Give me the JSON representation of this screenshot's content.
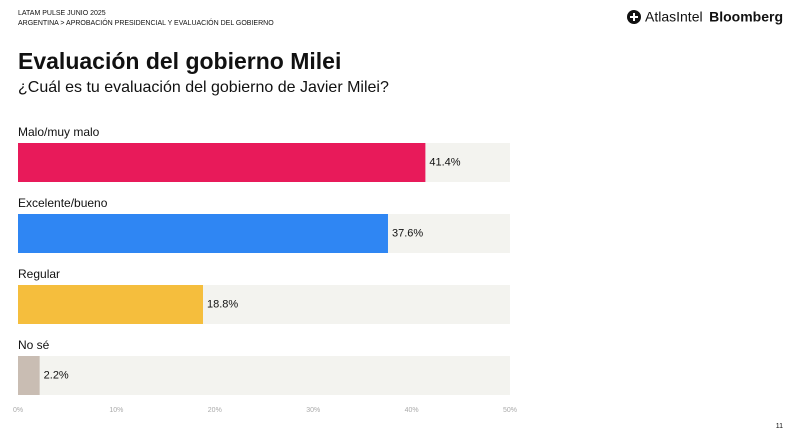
{
  "header": {
    "line1": "LATAM PULSE JUNIO 2025",
    "line2": "ARGENTINA > APROBACIÓN PRESIDENCIAL Y EVALUACIÓN DEL GOBIERNO",
    "brand1": "AtlasIntel",
    "brand2": "Bloomberg"
  },
  "page_number": "11",
  "chart_data": {
    "type": "hbar",
    "title": "Evaluación del gobierno Milei",
    "subtitle": "¿Cuál es tu evaluación del gobierno de Javier Milei?",
    "categories": [
      "Malo/muy malo",
      "Excelente/bueno",
      "Regular",
      "No sé"
    ],
    "values": [
      41.4,
      37.6,
      18.8,
      2.2
    ],
    "value_labels": [
      "41.4%",
      "37.6%",
      "18.8%",
      "2.2%"
    ],
    "colors": [
      "#e81a5a",
      "#2f86f3",
      "#f5be3d",
      "#c9bdb3"
    ],
    "xlim": [
      0,
      50
    ],
    "xticks": [
      {
        "value": 0,
        "label": "0%"
      },
      {
        "value": 10,
        "label": "10%"
      },
      {
        "value": 20,
        "label": "20%"
      },
      {
        "value": 30,
        "label": "30%"
      },
      {
        "value": 40,
        "label": "40%"
      },
      {
        "value": 50,
        "label": "50%"
      }
    ]
  }
}
